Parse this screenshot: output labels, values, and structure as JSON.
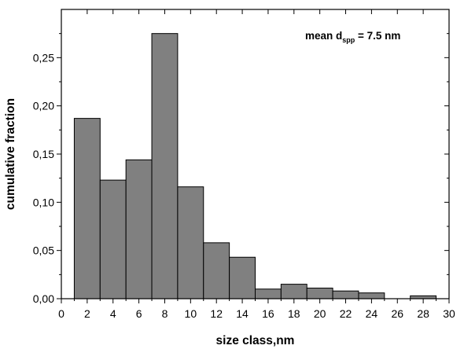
{
  "chart_data": {
    "type": "bar",
    "bin_edges": [
      1,
      3,
      5,
      7,
      9,
      11,
      13,
      15,
      17,
      19,
      21,
      23,
      25,
      27,
      29
    ],
    "values": [
      0.187,
      0.123,
      0.144,
      0.275,
      0.116,
      0.058,
      0.043,
      0.01,
      0.015,
      0.011,
      0.008,
      0.006,
      0.0,
      0.003
    ],
    "xlabel": "size class,nm",
    "ylabel": "cumulative fraction",
    "xlim": [
      0,
      30
    ],
    "ylim": [
      0,
      0.3
    ],
    "x_ticks": [
      0,
      2,
      4,
      6,
      8,
      10,
      12,
      14,
      16,
      18,
      20,
      22,
      24,
      26,
      28,
      30
    ],
    "y_ticks": [
      0.0,
      0.05,
      0.1,
      0.15,
      0.2,
      0.25
    ],
    "y_tick_labels": [
      "0,00",
      "0,05",
      "0,10",
      "0,15",
      "0,20",
      "0,25"
    ],
    "grid": false,
    "bar_color": "#808080",
    "annotation": {
      "prefix": "mean d",
      "subscript": "spp",
      "suffix": " = 7.5 nm"
    }
  }
}
